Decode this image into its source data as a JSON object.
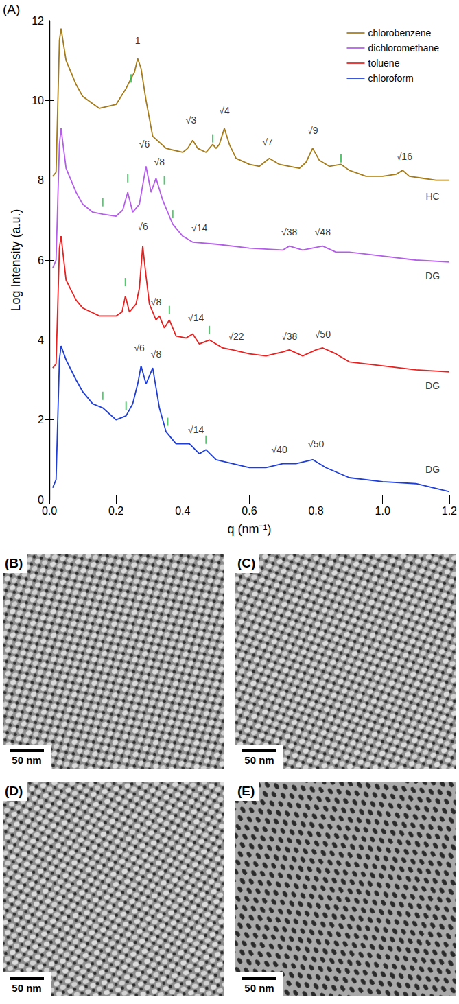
{
  "chart_data": {
    "type": "line",
    "panel": "(A)",
    "x_label": "q (nm⁻¹)",
    "y_label": "Log Intensity (a.u.)",
    "xlim": [
      0,
      1.2
    ],
    "xticks": [
      {
        "value": 0,
        "label": "0.0"
      },
      {
        "value": 0.2,
        "label": "0.2"
      },
      {
        "value": 0.4,
        "label": "0.4"
      },
      {
        "value": 0.6,
        "label": "0.6"
      },
      {
        "value": 0.8,
        "label": "0.8"
      },
      {
        "value": 1,
        "label": "1.0"
      },
      {
        "value": 1.2,
        "label": "1.2"
      }
    ],
    "ylim": [
      0,
      12
    ],
    "yticks": [
      0,
      2,
      4,
      6,
      8,
      10,
      12
    ],
    "grid": false,
    "legend": "top-right",
    "series": [
      {
        "name": "chlorobenzene",
        "color": "#a57c1b",
        "x": [
          0.01,
          0.02,
          0.03,
          0.035,
          0.05,
          0.08,
          0.1,
          0.15,
          0.2,
          0.23,
          0.245,
          0.255,
          0.265,
          0.275,
          0.29,
          0.31,
          0.35,
          0.4,
          0.415,
          0.43,
          0.445,
          0.47,
          0.49,
          0.5,
          0.51,
          0.525,
          0.54,
          0.56,
          0.6,
          0.63,
          0.66,
          0.69,
          0.72,
          0.75,
          0.77,
          0.79,
          0.81,
          0.84,
          0.875,
          0.9,
          0.95,
          1.0,
          1.04,
          1.06,
          1.08,
          1.12,
          1.16,
          1.2
        ],
        "values": [
          8.1,
          8.2,
          11.5,
          11.8,
          11.0,
          10.4,
          10.1,
          9.8,
          9.9,
          10.3,
          10.55,
          10.7,
          11.05,
          10.8,
          10.0,
          9.1,
          8.8,
          8.7,
          8.8,
          9.0,
          8.8,
          8.7,
          8.9,
          8.8,
          8.9,
          9.3,
          8.9,
          8.55,
          8.4,
          8.35,
          8.55,
          8.4,
          8.35,
          8.3,
          8.45,
          8.8,
          8.5,
          8.35,
          8.4,
          8.25,
          8.1,
          8.1,
          8.15,
          8.25,
          8.1,
          8.05,
          8.0,
          8.0
        ]
      },
      {
        "name": "dichloromethane",
        "color": "#b35de8",
        "x": [
          0.01,
          0.02,
          0.03,
          0.035,
          0.05,
          0.08,
          0.1,
          0.13,
          0.16,
          0.2,
          0.22,
          0.235,
          0.25,
          0.27,
          0.29,
          0.305,
          0.32,
          0.34,
          0.37,
          0.4,
          0.43,
          0.5,
          0.6,
          0.7,
          0.72,
          0.76,
          0.82,
          0.86,
          0.9,
          1.0,
          1.1,
          1.2
        ],
        "values": [
          5.8,
          6.0,
          8.9,
          9.3,
          8.3,
          7.7,
          7.4,
          7.2,
          7.15,
          7.1,
          7.25,
          7.7,
          7.2,
          7.4,
          8.35,
          7.7,
          8.05,
          7.5,
          6.9,
          6.6,
          6.45,
          6.4,
          6.3,
          6.25,
          6.35,
          6.25,
          6.35,
          6.2,
          6.2,
          6.1,
          6.0,
          5.95
        ]
      },
      {
        "name": "toluene",
        "color": "#e8201f",
        "x": [
          0.01,
          0.02,
          0.03,
          0.035,
          0.05,
          0.08,
          0.1,
          0.15,
          0.2,
          0.218,
          0.228,
          0.24,
          0.26,
          0.27,
          0.28,
          0.29,
          0.3,
          0.32,
          0.33,
          0.345,
          0.36,
          0.38,
          0.41,
          0.43,
          0.45,
          0.48,
          0.52,
          0.55,
          0.6,
          0.65,
          0.7,
          0.72,
          0.76,
          0.8,
          0.82,
          0.86,
          0.9,
          1.0,
          1.1,
          1.2
        ],
        "values": [
          3.3,
          3.4,
          6.3,
          6.6,
          5.5,
          5.0,
          4.8,
          4.6,
          4.6,
          4.7,
          5.1,
          4.7,
          4.9,
          5.3,
          6.35,
          5.6,
          4.9,
          4.5,
          4.6,
          4.3,
          4.5,
          4.1,
          4.05,
          4.15,
          3.9,
          4.0,
          3.8,
          3.75,
          3.65,
          3.6,
          3.7,
          3.75,
          3.6,
          3.75,
          3.8,
          3.65,
          3.45,
          3.35,
          3.25,
          3.2
        ]
      },
      {
        "name": "chloroform",
        "color": "#1f3ed6",
        "x": [
          0.01,
          0.02,
          0.03,
          0.035,
          0.05,
          0.08,
          0.1,
          0.13,
          0.16,
          0.2,
          0.23,
          0.25,
          0.265,
          0.275,
          0.29,
          0.31,
          0.33,
          0.35,
          0.38,
          0.42,
          0.45,
          0.47,
          0.5,
          0.55,
          0.6,
          0.65,
          0.7,
          0.74,
          0.79,
          0.83,
          0.9,
          1.0,
          1.1,
          1.2
        ],
        "values": [
          0.3,
          0.5,
          3.5,
          3.85,
          3.5,
          3.0,
          2.7,
          2.4,
          2.3,
          2.0,
          2.1,
          2.4,
          2.9,
          3.35,
          2.9,
          3.3,
          2.3,
          1.7,
          1.4,
          1.4,
          1.15,
          1.25,
          1.0,
          0.9,
          0.8,
          0.8,
          0.9,
          0.9,
          1.0,
          0.8,
          0.55,
          0.45,
          0.4,
          0.2
        ]
      }
    ],
    "annotations": [
      {
        "text": "1",
        "x": 0.265,
        "y": 11.5
      },
      {
        "text": "√3",
        "x": 0.425,
        "y": 9.5
      },
      {
        "text": "√4",
        "x": 0.525,
        "y": 9.75
      },
      {
        "text": "√7",
        "x": 0.655,
        "y": 8.95
      },
      {
        "text": "√9",
        "x": 0.79,
        "y": 9.25
      },
      {
        "text": "√16",
        "x": 1.065,
        "y": 8.6
      },
      {
        "text": "HC",
        "x": 1.15,
        "y": 7.6
      },
      {
        "text": "√6",
        "x": 0.285,
        "y": 8.9
      },
      {
        "text": "√8",
        "x": 0.33,
        "y": 8.45
      },
      {
        "text": "√14",
        "x": 0.45,
        "y": 6.8
      },
      {
        "text": "√38",
        "x": 0.72,
        "y": 6.7
      },
      {
        "text": "√48",
        "x": 0.82,
        "y": 6.7
      },
      {
        "text": "DG",
        "x": 1.15,
        "y": 5.6
      },
      {
        "text": "√6",
        "x": 0.28,
        "y": 6.85
      },
      {
        "text": "√8",
        "x": 0.32,
        "y": 4.95
      },
      {
        "text": "√14",
        "x": 0.44,
        "y": 4.55
      },
      {
        "text": "√22",
        "x": 0.56,
        "y": 4.1
      },
      {
        "text": "√38",
        "x": 0.72,
        "y": 4.1
      },
      {
        "text": "√50",
        "x": 0.82,
        "y": 4.15
      },
      {
        "text": "DG",
        "x": 1.15,
        "y": 2.85
      },
      {
        "text": "√6",
        "x": 0.27,
        "y": 3.8
      },
      {
        "text": "√8",
        "x": 0.32,
        "y": 3.65
      },
      {
        "text": "√14",
        "x": 0.44,
        "y": 1.75
      },
      {
        "text": "√40",
        "x": 0.69,
        "y": 1.25
      },
      {
        "text": "√50",
        "x": 0.8,
        "y": 1.4
      },
      {
        "text": "DG",
        "x": 1.15,
        "y": 0.75
      }
    ],
    "peak_marks": {
      "color": "#2db84d",
      "points": [
        {
          "x": 0.245,
          "y": 10.55
        },
        {
          "x": 0.49,
          "y": 9.05
        },
        {
          "x": 0.875,
          "y": 8.55
        },
        {
          "x": 0.16,
          "y": 7.45
        },
        {
          "x": 0.235,
          "y": 8.05
        },
        {
          "x": 0.345,
          "y": 8.0
        },
        {
          "x": 0.37,
          "y": 7.15
        },
        {
          "x": 0.228,
          "y": 5.45
        },
        {
          "x": 0.36,
          "y": 4.75
        },
        {
          "x": 0.48,
          "y": 4.25
        },
        {
          "x": 0.16,
          "y": 2.6
        },
        {
          "x": 0.23,
          "y": 2.35
        },
        {
          "x": 0.355,
          "y": 1.95
        },
        {
          "x": 0.47,
          "y": 1.5
        }
      ]
    }
  },
  "image_panels": [
    {
      "label": "(B)",
      "scale_bar": "50 nm"
    },
    {
      "label": "(C)",
      "scale_bar": "50 nm"
    },
    {
      "label": "(D)",
      "scale_bar": "50 nm"
    },
    {
      "label": "(E)",
      "scale_bar": "50 nm"
    }
  ]
}
